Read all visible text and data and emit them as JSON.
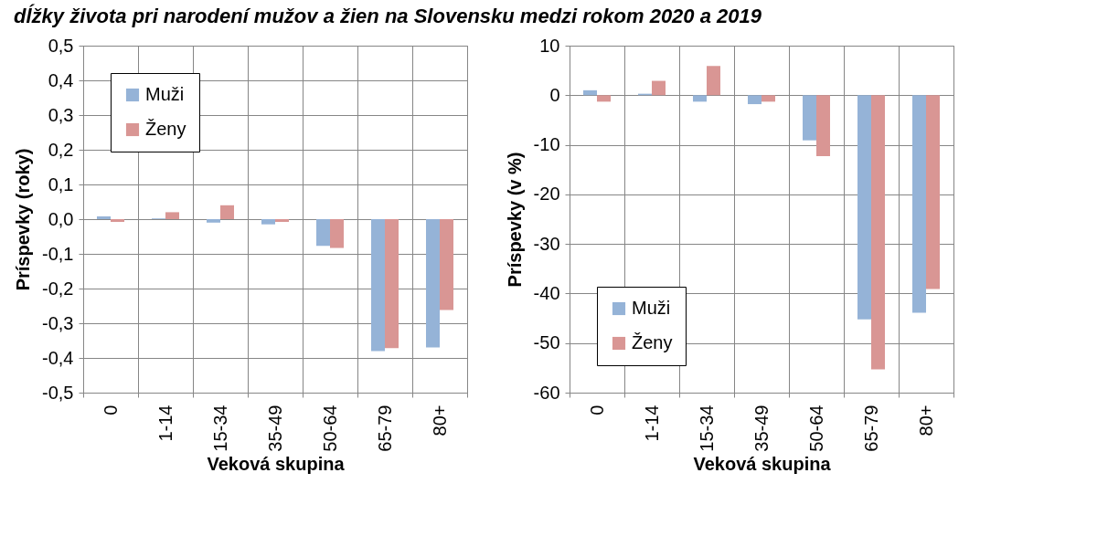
{
  "chart_data": [
    {
      "type": "bar",
      "title": "dĺžky života pri narodení mužov a žien na Slovensku medzi rokom 2020 a 2019",
      "xlabel": "Veková skupina",
      "ylabel": "Príspevky (roky)",
      "categories": [
        "0",
        "1-14",
        "15-34",
        "35-49",
        "50-64",
        "65-79",
        "80+"
      ],
      "series": [
        {
          "name": "Muži",
          "color": "#95b3d7",
          "values": [
            0.008,
            0.002,
            -0.01,
            -0.015,
            -0.077,
            -0.38,
            -0.37
          ]
        },
        {
          "name": "Ženy",
          "color": "#d99694",
          "values": [
            -0.008,
            0.02,
            0.04,
            -0.008,
            -0.083,
            -0.372,
            -0.262
          ]
        }
      ],
      "ylim": [
        -0.5,
        0.5
      ],
      "yticks": [
        {
          "value": -0.5,
          "label": "-0,5"
        },
        {
          "value": -0.4,
          "label": "-0,4"
        },
        {
          "value": -0.3,
          "label": "-0,3"
        },
        {
          "value": -0.2,
          "label": "-0,2"
        },
        {
          "value": -0.1,
          "label": "-0,1"
        },
        {
          "value": 0,
          "label": "0,0"
        },
        {
          "value": 0.1,
          "label": "0,1"
        },
        {
          "value": 0.2,
          "label": "0,2"
        },
        {
          "value": 0.3,
          "label": "0,3"
        },
        {
          "value": 0.4,
          "label": "0,4"
        },
        {
          "value": 0.5,
          "label": "0,5"
        }
      ],
      "grid": true,
      "legend": "top left"
    },
    {
      "type": "bar",
      "xlabel": "Veková skupina",
      "ylabel": "Príspevky (v %)",
      "categories": [
        "0",
        "1-14",
        "15-34",
        "35-49",
        "50-64",
        "65-79",
        "80+"
      ],
      "series": [
        {
          "name": "Muži",
          "color": "#95b3d7",
          "values": [
            1.0,
            0.3,
            -1.3,
            -1.8,
            -9.1,
            -45.2,
            -43.9
          ]
        },
        {
          "name": "Ženy",
          "color": "#d99694",
          "values": [
            -1.3,
            2.9,
            5.9,
            -1.3,
            -12.3,
            -55.3,
            -39.1
          ]
        }
      ],
      "ylim": [
        -60,
        10
      ],
      "yticks": [
        -60,
        -50,
        -40,
        -30,
        -20,
        -10,
        0,
        10
      ],
      "grid": true,
      "legend": "bottom left"
    }
  ]
}
